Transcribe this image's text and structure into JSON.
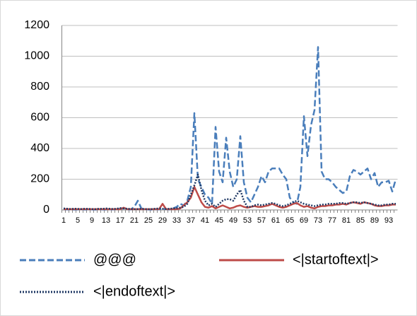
{
  "chart_data": {
    "type": "line",
    "categories": [
      "1",
      null,
      null,
      null,
      "5",
      null,
      null,
      null,
      "9",
      null,
      null,
      null,
      "13",
      null,
      null,
      null,
      "17",
      null,
      null,
      null,
      "21",
      null,
      null,
      null,
      "25",
      null,
      null,
      null,
      "29",
      null,
      null,
      null,
      "33",
      null,
      null,
      null,
      "37",
      null,
      null,
      null,
      "41",
      null,
      null,
      null,
      "45",
      null,
      null,
      null,
      "49",
      null,
      null,
      null,
      "53",
      null,
      null,
      null,
      "57",
      null,
      null,
      null,
      "61",
      null,
      null,
      null,
      "65",
      null,
      null,
      null,
      "69",
      null,
      null,
      null,
      "73",
      null,
      null,
      null,
      "77",
      null,
      null,
      null,
      "81",
      null,
      null,
      null,
      "85",
      null,
      null,
      null,
      "89",
      null,
      null,
      null,
      "93",
      null,
      null
    ],
    "series": [
      {
        "name": "@@@",
        "color": "#4a7ebb",
        "dash": "dashed",
        "values": [
          5,
          3,
          4,
          2,
          3,
          5,
          2,
          4,
          3,
          2,
          5,
          3,
          2,
          4,
          3,
          5,
          8,
          10,
          5,
          3,
          20,
          60,
          10,
          5,
          3,
          2,
          5,
          3,
          10,
          5,
          3,
          10,
          20,
          40,
          30,
          60,
          150,
          630,
          200,
          150,
          100,
          80,
          40,
          540,
          250,
          180,
          470,
          250,
          150,
          200,
          480,
          180,
          80,
          50,
          100,
          150,
          220,
          180,
          250,
          270,
          270,
          270,
          230,
          200,
          80,
          50,
          40,
          150,
          610,
          350,
          550,
          650,
          1060,
          250,
          200,
          200,
          180,
          150,
          130,
          110,
          120,
          220,
          260,
          250,
          230,
          250,
          270,
          200,
          240,
          150,
          180,
          180,
          190,
          120,
          200
        ]
      },
      {
        "name": "<|startoftext|>",
        "color": "#be4b48",
        "dash": "solid",
        "values": [
          5,
          5,
          5,
          5,
          5,
          5,
          5,
          5,
          5,
          5,
          5,
          5,
          5,
          5,
          5,
          5,
          5,
          15,
          5,
          5,
          5,
          5,
          5,
          5,
          5,
          5,
          5,
          5,
          40,
          5,
          5,
          5,
          5,
          10,
          30,
          50,
          80,
          150,
          100,
          50,
          20,
          15,
          25,
          10,
          20,
          30,
          20,
          10,
          15,
          25,
          30,
          20,
          15,
          20,
          25,
          20,
          20,
          25,
          30,
          40,
          30,
          20,
          15,
          20,
          30,
          40,
          45,
          30,
          20,
          25,
          15,
          10,
          20,
          25,
          25,
          30,
          30,
          35,
          35,
          40,
          35,
          45,
          50,
          45,
          40,
          50,
          45,
          40,
          30,
          25,
          25,
          30,
          30,
          35,
          35
        ]
      },
      {
        "name": "<|endoftext|>",
        "color": "#1f3864",
        "dash": "dotted",
        "values": [
          10,
          8,
          6,
          8,
          7,
          6,
          8,
          7,
          6,
          5,
          8,
          7,
          10,
          8,
          6,
          8,
          12,
          10,
          8,
          6,
          5,
          6,
          8,
          6,
          5,
          6,
          8,
          10,
          8,
          6,
          8,
          10,
          12,
          15,
          20,
          40,
          100,
          160,
          230,
          130,
          60,
          30,
          40,
          20,
          40,
          60,
          70,
          70,
          60,
          100,
          130,
          60,
          20,
          20,
          30,
          35,
          30,
          35,
          40,
          45,
          40,
          30,
          25,
          30,
          40,
          50,
          60,
          50,
          40,
          35,
          30,
          25,
          30,
          35,
          35,
          40,
          40,
          40,
          45,
          45,
          40,
          45,
          50,
          50,
          45,
          50,
          45,
          40,
          35,
          30,
          30,
          35,
          35,
          40,
          40
        ]
      }
    ],
    "ylim": [
      0,
      1200
    ],
    "yticks": [
      0,
      200,
      400,
      600,
      800,
      1000,
      1200
    ],
    "grid": true,
    "legend": "bottom"
  }
}
